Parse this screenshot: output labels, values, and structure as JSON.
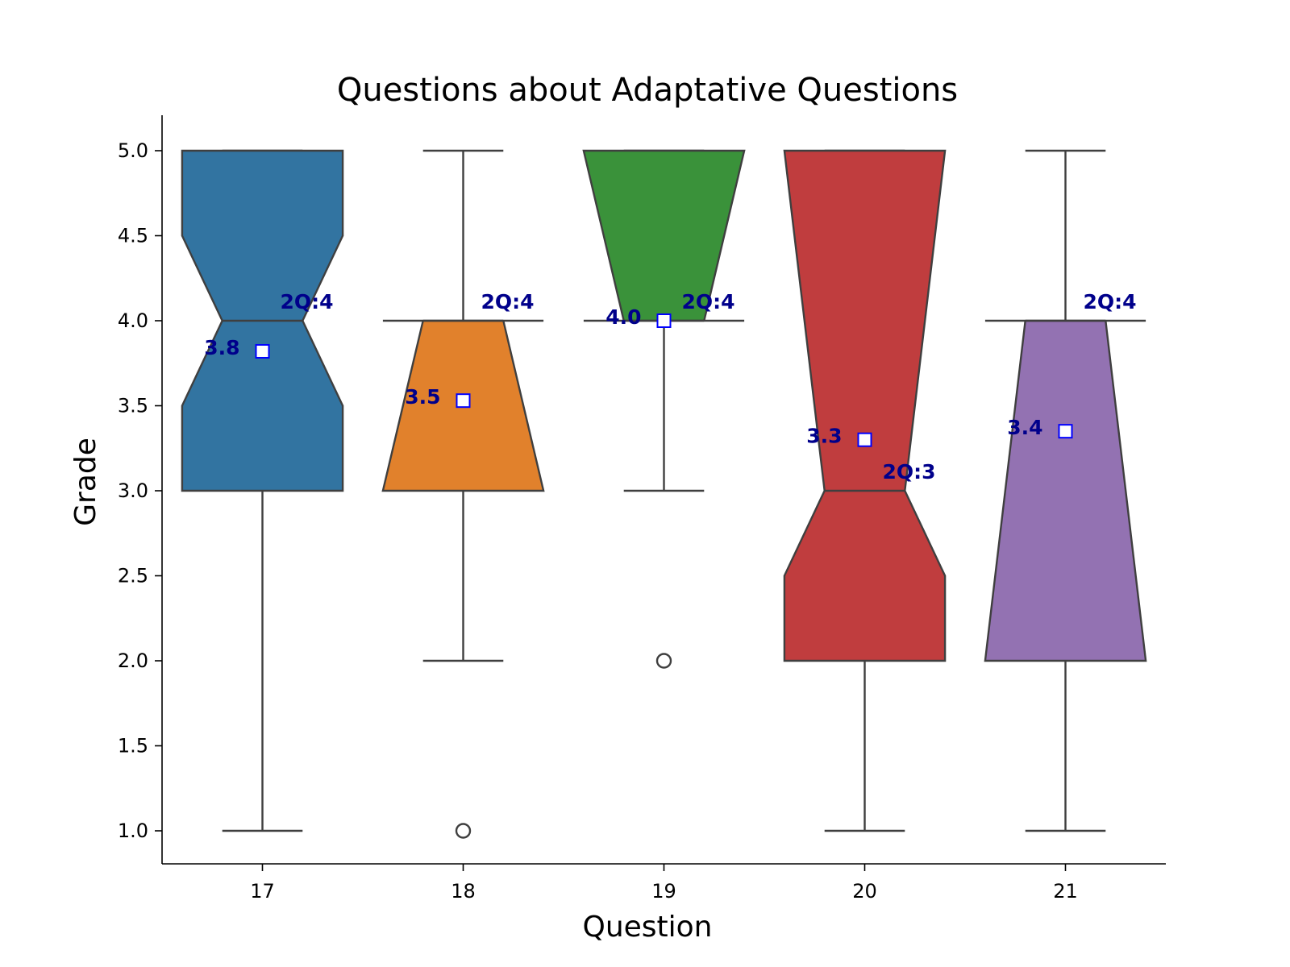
{
  "chart_data": {
    "type": "boxplot",
    "title": "Questions about Adaptative Questions",
    "xlabel": "Question",
    "ylabel": "Grade",
    "ylim": [
      0.8,
      5.2
    ],
    "yticks": [
      "1.0",
      "1.5",
      "2.0",
      "2.5",
      "3.0",
      "3.5",
      "4.0",
      "4.5",
      "5.0"
    ],
    "categories": [
      "17",
      "18",
      "19",
      "20",
      "21"
    ],
    "notched": true,
    "grid": false,
    "boxes": [
      {
        "category": "17",
        "color": "#3274a1",
        "q1": 3.0,
        "median": 4.0,
        "q3": 5.0,
        "whisker_low": 1.0,
        "whisker_high": 5.0,
        "notch_low": 3.5,
        "notch_high": 4.5,
        "mean": 3.82,
        "outliers": [],
        "mean_label": "3.8",
        "median_label": "2Q:4"
      },
      {
        "category": "18",
        "color": "#e1812c",
        "q1": 3.0,
        "median": 4.0,
        "q3": 4.0,
        "whisker_low": 2.0,
        "whisker_high": 5.0,
        "notch_low": 3.0,
        "notch_high": 4.0,
        "mean": 3.53,
        "outliers": [
          1.0
        ],
        "mean_label": "3.5",
        "median_label": "2Q:4"
      },
      {
        "category": "19",
        "color": "#3a923a",
        "q1": 4.0,
        "median": 4.0,
        "q3": 5.0,
        "whisker_low": 3.0,
        "whisker_high": 5.0,
        "notch_low": 4.0,
        "notch_high": 5.0,
        "mean": 4.0,
        "outliers": [
          2.0
        ],
        "mean_label": "4.0",
        "median_label": "2Q:4"
      },
      {
        "category": "20",
        "color": "#c03d3e",
        "q1": 2.0,
        "median": 3.0,
        "q3": 5.0,
        "whisker_low": 1.0,
        "whisker_high": 5.0,
        "notch_low": 2.5,
        "notch_high": 5.0,
        "mean": 3.3,
        "outliers": [],
        "mean_label": "3.3",
        "median_label": "2Q:3"
      },
      {
        "category": "21",
        "color": "#9372b2",
        "q1": 2.0,
        "median": 4.0,
        "q3": 4.0,
        "whisker_low": 1.0,
        "whisker_high": 5.0,
        "notch_low": 2.0,
        "notch_high": 4.0,
        "mean": 3.35,
        "outliers": [],
        "mean_label": "3.4",
        "median_label": "2Q:4"
      }
    ]
  }
}
